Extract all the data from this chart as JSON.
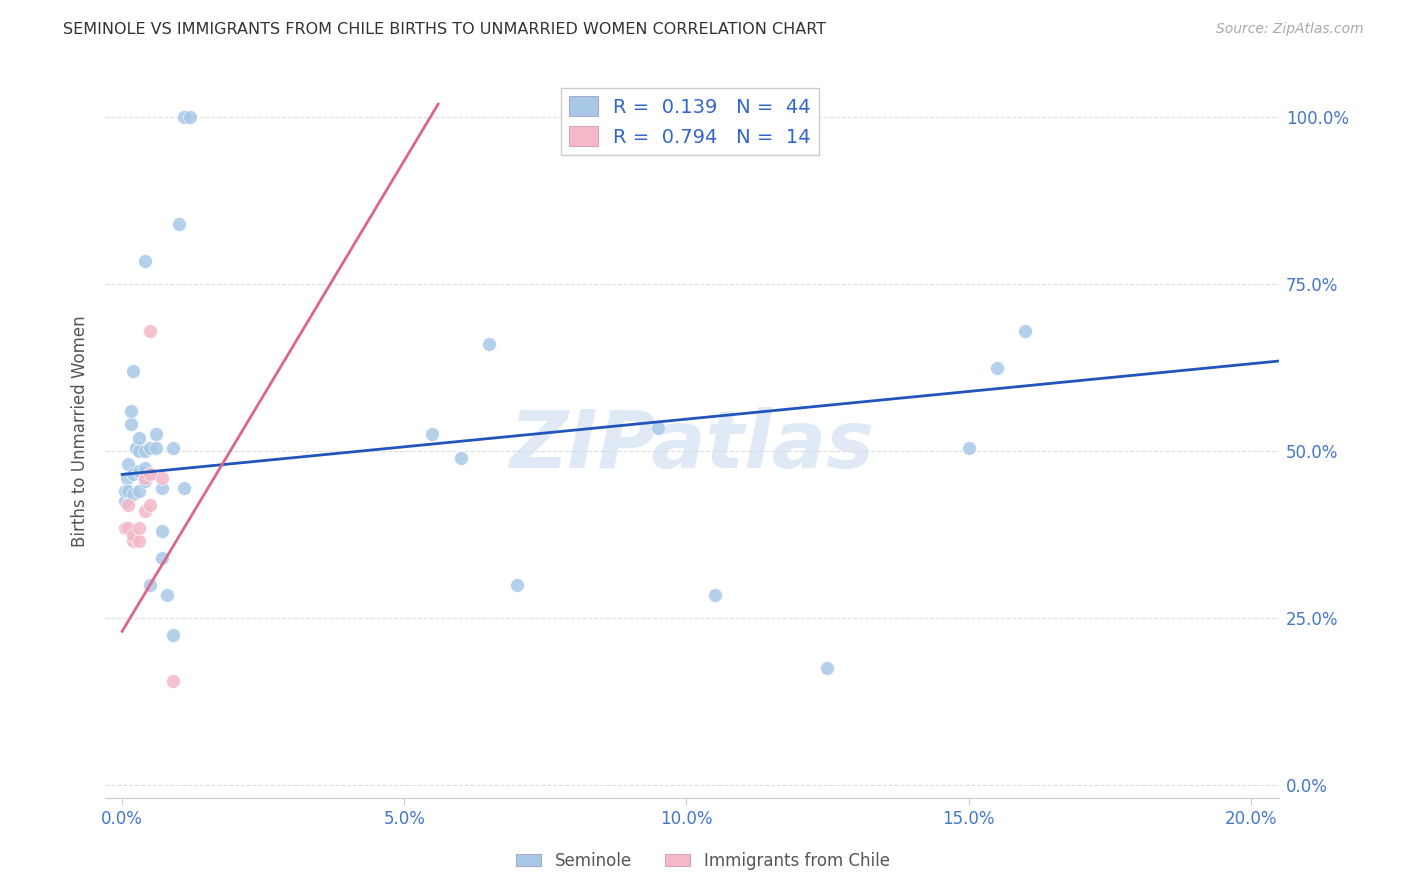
{
  "title": "SEMINOLE VS IMMIGRANTS FROM CHILE BIRTHS TO UNMARRIED WOMEN CORRELATION CHART",
  "source": "Source: ZipAtlas.com",
  "xlabel_ticks": [
    "0.0%",
    "",
    "",
    "",
    "",
    "5.0%",
    "",
    "",
    "",
    "",
    "10.0%",
    "",
    "",
    "",
    "",
    "15.0%",
    "",
    "",
    "",
    "",
    "20.0%"
  ],
  "xlabel_vals": [
    0.0,
    0.01,
    0.02,
    0.03,
    0.04,
    0.05,
    0.06,
    0.07,
    0.08,
    0.09,
    0.1,
    0.11,
    0.12,
    0.13,
    0.14,
    0.15,
    0.16,
    0.17,
    0.18,
    0.19,
    0.2
  ],
  "xlabel_major_ticks": [
    0.0,
    0.05,
    0.1,
    0.15,
    0.2
  ],
  "xlabel_major_labels": [
    "0.0%",
    "5.0%",
    "10.0%",
    "15.0%",
    "20.0%"
  ],
  "ylabel_ticks": [
    "0.0%",
    "25.0%",
    "50.0%",
    "75.0%",
    "100.0%"
  ],
  "ylabel_vals": [
    0.0,
    0.25,
    0.5,
    0.75,
    1.0
  ],
  "ylabel_label": "Births to Unmarried Women",
  "xlim": [
    -0.003,
    0.205
  ],
  "ylim": [
    -0.02,
    1.08
  ],
  "seminole_x": [
    0.0005,
    0.0005,
    0.0008,
    0.001,
    0.001,
    0.0015,
    0.0015,
    0.002,
    0.002,
    0.002,
    0.0025,
    0.003,
    0.003,
    0.003,
    0.003,
    0.004,
    0.004,
    0.004,
    0.004,
    0.005,
    0.005,
    0.005,
    0.006,
    0.006,
    0.007,
    0.007,
    0.007,
    0.008,
    0.009,
    0.009,
    0.01,
    0.011,
    0.011,
    0.012,
    0.055,
    0.06,
    0.065,
    0.07,
    0.095,
    0.105,
    0.125,
    0.15,
    0.155,
    0.16
  ],
  "seminole_y": [
    0.425,
    0.44,
    0.46,
    0.44,
    0.48,
    0.54,
    0.56,
    0.435,
    0.465,
    0.62,
    0.505,
    0.44,
    0.47,
    0.5,
    0.52,
    0.455,
    0.475,
    0.5,
    0.785,
    0.3,
    0.465,
    0.505,
    0.505,
    0.525,
    0.34,
    0.38,
    0.445,
    0.285,
    0.225,
    0.505,
    0.84,
    0.445,
    1.0,
    1.0,
    0.525,
    0.49,
    0.66,
    0.3,
    0.535,
    0.285,
    0.175,
    0.505,
    0.625,
    0.68
  ],
  "chile_x": [
    0.0005,
    0.001,
    0.001,
    0.002,
    0.002,
    0.003,
    0.003,
    0.004,
    0.004,
    0.005,
    0.005,
    0.005,
    0.007,
    0.009
  ],
  "chile_y": [
    0.385,
    0.385,
    0.42,
    0.365,
    0.375,
    0.365,
    0.385,
    0.41,
    0.46,
    0.42,
    0.465,
    0.68,
    0.46,
    0.155
  ],
  "blue_line_x": [
    0.0,
    0.205
  ],
  "blue_line_y": [
    0.465,
    0.635
  ],
  "pink_line_x": [
    0.0,
    0.056
  ],
  "pink_line_y": [
    0.23,
    1.02
  ],
  "blue_color": "#a8c8e8",
  "pink_color": "#f4b8c8",
  "blue_line_color": "#2255bb",
  "pink_line_color": "#dd6688",
  "bg_color": "#ffffff",
  "grid_color": "#dddddd",
  "watermark": "ZIPatlas",
  "legend1_label": "R =  0.139   N =  44",
  "legend2_label": "R =  0.794   N =  14",
  "bottom_label1": "Seminole",
  "bottom_label2": "Immigrants from Chile"
}
